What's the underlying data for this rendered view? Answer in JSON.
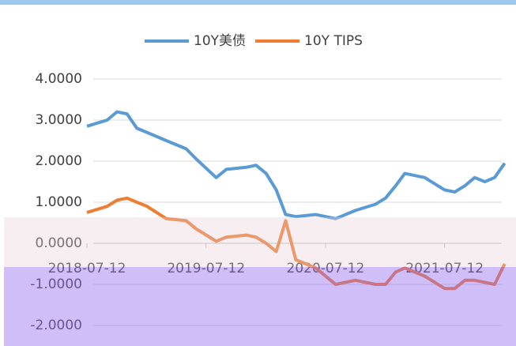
{
  "chart_data": {
    "type": "line",
    "x": [
      "2018-07-12",
      "2018-09-12",
      "2018-10-12",
      "2018-11-12",
      "2018-12-12",
      "2019-01-12",
      "2019-03-12",
      "2019-05-12",
      "2019-06-12",
      "2019-08-12",
      "2019-09-12",
      "2019-11-12",
      "2019-12-12",
      "2020-01-12",
      "2020-02-12",
      "2020-03-12",
      "2020-04-12",
      "2020-06-12",
      "2020-08-12",
      "2020-10-12",
      "2020-12-12",
      "2021-01-12",
      "2021-02-12",
      "2021-03-12",
      "2021-05-12",
      "2021-07-12",
      "2021-08-12",
      "2021-09-12",
      "2021-10-12",
      "2021-11-12",
      "2021-12-12",
      "2022-01-12"
    ],
    "series": [
      {
        "name": "10Y美债",
        "color": "#5b9bd5",
        "values": [
          2.85,
          3.0,
          3.2,
          3.15,
          2.8,
          2.7,
          2.5,
          2.3,
          2.05,
          1.6,
          1.8,
          1.85,
          1.9,
          1.7,
          1.3,
          0.7,
          0.65,
          0.7,
          0.6,
          0.8,
          0.95,
          1.1,
          1.4,
          1.7,
          1.6,
          1.3,
          1.25,
          1.4,
          1.6,
          1.5,
          1.6,
          1.95
        ]
      },
      {
        "name": "10Y TIPS",
        "color": "#ed7d31",
        "values": [
          0.75,
          0.9,
          1.05,
          1.1,
          1.0,
          0.9,
          0.6,
          0.55,
          0.35,
          0.05,
          0.15,
          0.2,
          0.15,
          0.0,
          -0.2,
          0.55,
          -0.4,
          -0.6,
          -1.0,
          -0.9,
          -1.0,
          -1.0,
          -0.7,
          -0.6,
          -0.8,
          -1.1,
          -1.1,
          -0.9,
          -0.9,
          -0.95,
          -1.0,
          -0.5
        ]
      }
    ],
    "xlim": [
      "2018-07-12",
      "2022-01-20"
    ],
    "xticks": [
      "2018-07-12",
      "2019-07-12",
      "2020-07-12",
      "2021-07-12"
    ],
    "ylim": [
      -2,
      4
    ],
    "yticks": [
      {
        "value": -2,
        "label": "-2.0000"
      },
      {
        "value": -1,
        "label": "-1.0000"
      },
      {
        "value": 0,
        "label": "0.0000"
      },
      {
        "value": 1,
        "label": "1.0000"
      },
      {
        "value": 2,
        "label": "2.0000"
      },
      {
        "value": 3,
        "label": "3.0000"
      },
      {
        "value": 4,
        "label": "4.0000"
      }
    ],
    "grid": true,
    "legend": "top"
  }
}
